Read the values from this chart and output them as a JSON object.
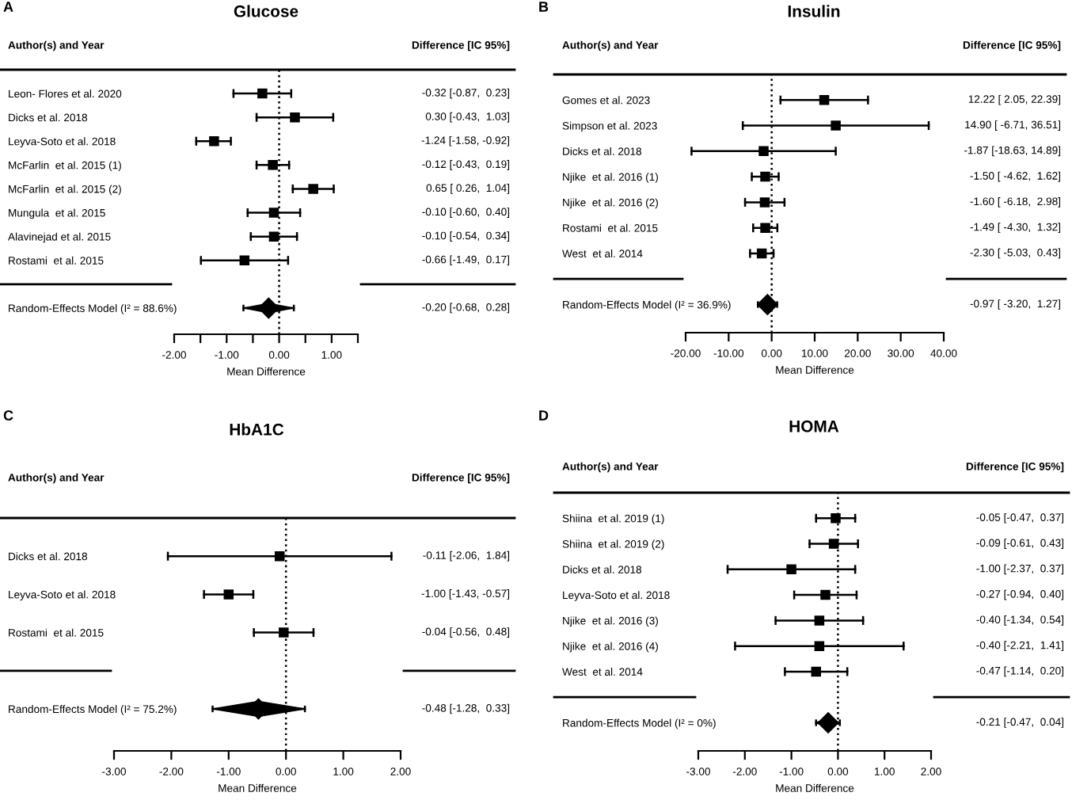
{
  "chart_data": [
    {
      "type": "scatter",
      "orientation": "horizontal",
      "title": "Glucose",
      "xlabel": "Mean Difference",
      "annotations": [
        "A",
        "Author(s) and Year",
        "Difference [IC 95%]"
      ],
      "categories": [
        "Leon- Flores et al. 2020",
        "Dicks et al. 2018",
        "Leyva-Soto et al. 2018",
        "McFarlin  et al. 2015 (1)",
        "McFarlin  et al. 2015 (2)",
        "Mungula  et al. 2015",
        "Alavinejad et al. 2015",
        "Rostami  et al. 2015",
        null,
        "Random-Effects Model (I² = 88.6%)"
      ],
      "series": [
        {
          "color": "#000000",
          "marker": "square",
          "values": [
            -0.32,
            0.3,
            -1.24,
            -0.12,
            0.65,
            -0.1,
            -0.1,
            -0.66,
            null,
            -0.2
          ],
          "errors": [
            [
              -0.87,
              0.23
            ],
            [
              -0.43,
              1.03
            ],
            [
              -1.58,
              -0.92
            ],
            [
              -0.43,
              0.19
            ],
            [
              0.26,
              1.04
            ],
            [
              -0.6,
              0.4
            ],
            [
              -0.54,
              0.34
            ],
            [
              -1.49,
              0.17
            ],
            null,
            [
              -0.68,
              0.28
            ]
          ],
          "value_labels": [
            "-0.32 [-0.87,  0.23]",
            "0.30 [-0.43,  1.03]",
            "-1.24 [-1.58, -0.92]",
            "-0.12 [-0.43,  0.19]",
            "0.65 [ 0.26,  1.04]",
            "-0.10 [-0.60,  0.40]",
            "-0.10 [-0.54,  0.34]",
            "-0.66 [-1.49,  0.17]",
            null,
            "-0.20 [-0.68,  0.28]"
          ]
        }
      ],
      "xlim": [
        -2,
        1.5
      ],
      "xticks": [
        {
          "value": -2,
          "label": "-2.00"
        },
        {
          "value": -1.5,
          "label": null
        },
        {
          "value": -1,
          "label": "-1.00"
        },
        {
          "value": -0.5,
          "label": null
        },
        {
          "value": 0,
          "label": "0.00"
        },
        {
          "value": 0.5,
          "label": null
        },
        {
          "value": 1,
          "label": "1.00"
        },
        {
          "value": 1.5,
          "label": null
        }
      ],
      "ref_lines": [
        {
          "axis": "x",
          "value": 0,
          "line_style": "dotted",
          "color": "#000000"
        }
      ]
    },
    {
      "type": "scatter",
      "orientation": "horizontal",
      "title": "Insulin",
      "xlabel": "Mean Difference",
      "annotations": [
        "B",
        "Author(s) and Year",
        "Difference [IC 95%]"
      ],
      "categories": [
        "Gomes et al. 2023",
        "Simpson et al. 2023",
        "Dicks et al. 2018",
        "Njike  et al. 2016 (1)",
        "Njike  et al. 2016 (2)",
        "Rostami  et al. 2015",
        "West  et al. 2014",
        null,
        "Random-Effects Model (I² = 36.9%)"
      ],
      "series": [
        {
          "color": "#000000",
          "marker": "square",
          "values": [
            12.22,
            14.9,
            -1.87,
            -1.5,
            -1.6,
            -1.49,
            -2.3,
            null,
            -0.97
          ],
          "errors": [
            [
              2.05,
              22.39
            ],
            [
              -6.71,
              36.51
            ],
            [
              -18.63,
              14.89
            ],
            [
              -4.62,
              1.62
            ],
            [
              -6.18,
              2.98
            ],
            [
              -4.3,
              1.32
            ],
            [
              -5.03,
              0.43
            ],
            null,
            [
              -3.2,
              1.27
            ]
          ],
          "value_labels": [
            "12.22 [ 2.05, 22.39]",
            "14.90 [ -6.71, 36.51]",
            "-1.87 [-18.63, 14.89]",
            "-1.50 [ -4.62,  1.62]",
            "-1.60 [ -6.18,  2.98]",
            "-1.49 [ -4.30,  1.32]",
            "-2.30 [ -5.03,  0.43]",
            null,
            "-0.97 [ -3.20,  1.27]"
          ]
        }
      ],
      "xlim": [
        -20,
        40
      ],
      "xticks": [
        {
          "value": -20,
          "label": "-20.00"
        },
        {
          "value": -10,
          "label": "-10.00"
        },
        {
          "value": 0,
          "label": "0.00"
        },
        {
          "value": 10,
          "label": "10.00"
        },
        {
          "value": 20,
          "label": "20.00"
        },
        {
          "value": 30,
          "label": "30.00"
        },
        {
          "value": 40,
          "label": "40.00"
        }
      ],
      "ref_lines": [
        {
          "axis": "x",
          "value": 0,
          "line_style": "dotted",
          "color": "#000000"
        }
      ]
    },
    {
      "type": "scatter",
      "orientation": "horizontal",
      "title": "HbA1C",
      "xlabel": "Mean Difference",
      "annotations": [
        "C",
        "Author(s) and Year",
        "Difference [IC 95%]"
      ],
      "categories": [
        "Dicks et al. 2018",
        "Leyva-Soto et al. 2018",
        "Rostami  et al. 2015",
        null,
        "Random-Effects Model (I² = 75.2%)"
      ],
      "series": [
        {
          "color": "#000000",
          "marker": "square",
          "values": [
            -0.11,
            -1.0,
            -0.04,
            null,
            -0.48
          ],
          "errors": [
            [
              -2.06,
              1.84
            ],
            [
              -1.43,
              -0.57
            ],
            [
              -0.56,
              0.48
            ],
            null,
            [
              -1.28,
              0.33
            ]
          ],
          "value_labels": [
            "-0.11 [-2.06,  1.84]",
            "-1.00 [-1.43, -0.57]",
            "-0.04 [-0.56,  0.48]",
            null,
            "-0.48 [-1.28,  0.33]"
          ]
        }
      ],
      "xlim": [
        -3,
        2
      ],
      "xticks": [
        {
          "value": -3,
          "label": "-3.00"
        },
        {
          "value": -2,
          "label": "-2.00"
        },
        {
          "value": -1,
          "label": "-1.00"
        },
        {
          "value": 0,
          "label": "0.00"
        },
        {
          "value": 1,
          "label": "1.00"
        },
        {
          "value": 2,
          "label": "2.00"
        }
      ],
      "ref_lines": [
        {
          "axis": "x",
          "value": 0,
          "line_style": "dotted",
          "color": "#000000"
        }
      ]
    },
    {
      "type": "scatter",
      "orientation": "horizontal",
      "title": "HOMA",
      "xlabel": "Mean Difference",
      "annotations": [
        "D",
        "Author(s) and Year",
        "Difference [IC 95%]"
      ],
      "categories": [
        "Shiina  et al. 2019 (1)",
        "Shiina  et al. 2019 (2)",
        "Dicks et al. 2018",
        "Leyva-Soto et al. 2018",
        "Njike  et al. 2016 (3)",
        "Njike  et al. 2016 (4)",
        "West  et al. 2014",
        null,
        "Random-Effects Model (I² = 0%)"
      ],
      "series": [
        {
          "color": "#000000",
          "marker": "square",
          "values": [
            -0.05,
            -0.09,
            -1.0,
            -0.27,
            -0.4,
            -0.4,
            -0.47,
            null,
            -0.21
          ],
          "errors": [
            [
              -0.47,
              0.37
            ],
            [
              -0.61,
              0.43
            ],
            [
              -2.37,
              0.37
            ],
            [
              -0.94,
              0.4
            ],
            [
              -1.34,
              0.54
            ],
            [
              -2.21,
              1.41
            ],
            [
              -1.14,
              0.2
            ],
            null,
            [
              -0.47,
              0.04
            ]
          ],
          "value_labels": [
            "-0.05 [-0.47,  0.37]",
            "-0.09 [-0.61,  0.43]",
            "-1.00 [-2.37,  0.37]",
            "-0.27 [-0.94,  0.40]",
            "-0.40 [-1.34,  0.54]",
            "-0.40 [-2.21,  1.41]",
            "-0.47 [-1.14,  0.20]",
            null,
            "-0.21 [-0.47,  0.04]"
          ]
        }
      ],
      "xlim": [
        -3,
        2
      ],
      "xticks": [
        {
          "value": -3,
          "label": "-3.00"
        },
        {
          "value": -2,
          "label": "-2.00"
        },
        {
          "value": -1,
          "label": "-1.00"
        },
        {
          "value": 0,
          "label": "0.00"
        },
        {
          "value": 1,
          "label": "1.00"
        },
        {
          "value": 2,
          "label": "2.00"
        }
      ],
      "ref_lines": [
        {
          "axis": "x",
          "value": 0,
          "line_style": "dotted",
          "color": "#000000"
        }
      ]
    }
  ]
}
